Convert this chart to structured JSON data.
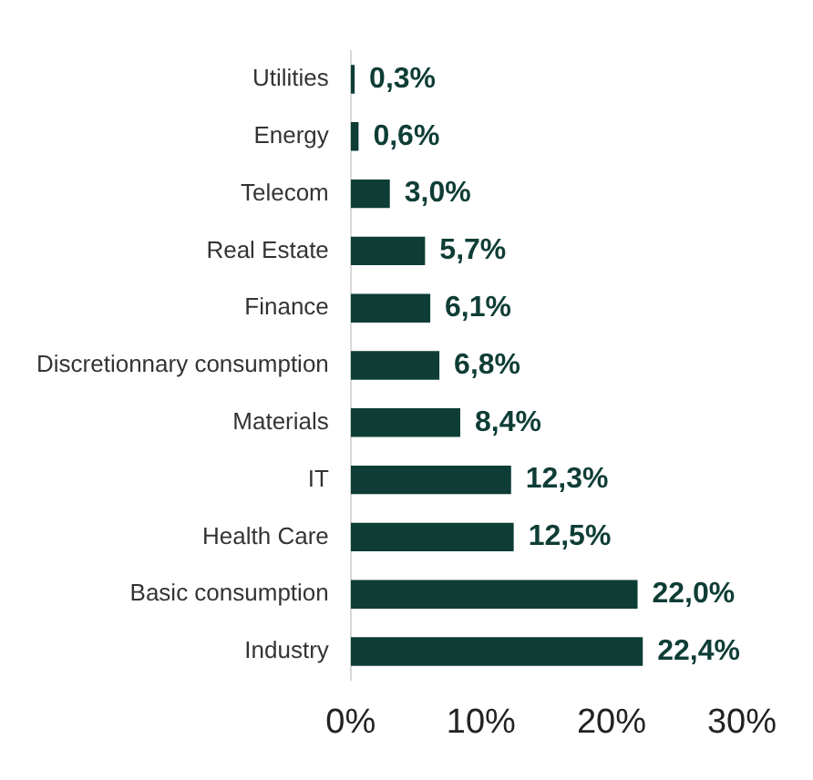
{
  "chart_data": {
    "type": "bar",
    "orientation": "horizontal",
    "categories": [
      "Utilities",
      "Energy",
      "Telecom",
      "Real Estate",
      "Finance",
      "Discretionnary consumption",
      "Materials",
      "IT",
      "Health Care",
      "Basic consumption",
      "Industry"
    ],
    "values": [
      0.3,
      0.6,
      3.0,
      5.7,
      6.1,
      6.8,
      8.4,
      12.3,
      12.5,
      22.0,
      22.4
    ],
    "value_labels": [
      "0,3%",
      "0,6%",
      "3,0%",
      "5,7%",
      "6,1%",
      "6,8%",
      "8,4%",
      "12,3%",
      "12,5%",
      "22,0%",
      "22,4%"
    ],
    "color": "#0e3d36",
    "xlim": [
      0,
      30
    ],
    "xticks": [
      {
        "value": 0,
        "label": "0%"
      },
      {
        "value": 10,
        "label": "10%"
      },
      {
        "value": 20,
        "label": "20%"
      },
      {
        "value": 30,
        "label": "30%"
      }
    ]
  }
}
